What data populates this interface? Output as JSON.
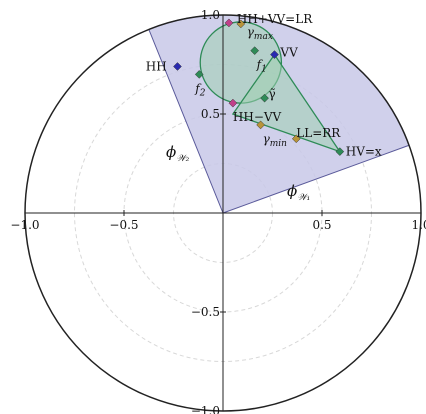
{
  "chart_data": {
    "type": "scatter",
    "title": "",
    "xlabel": "",
    "ylabel": "",
    "xlim": [
      -1,
      1
    ],
    "ylim": [
      -1,
      1
    ],
    "coordinate_system": "polar",
    "unit_circle": true,
    "dashed_radii": [
      0.25,
      0.5,
      0.75
    ],
    "x_ticks": [
      {
        "value": -1.0,
        "label": "−1.0"
      },
      {
        "value": -0.5,
        "label": "−0.5"
      },
      {
        "value": 0.5,
        "label": "0.5"
      },
      {
        "value": 1.0,
        "label": "1.0"
      }
    ],
    "y_ticks": [
      {
        "value": 1.0,
        "label": "1.0"
      },
      {
        "value": 0.5,
        "label": "0.5"
      },
      {
        "value": -0.5,
        "label": "−0.5"
      },
      {
        "value": -1.0,
        "label": "−1.0"
      }
    ],
    "sector": {
      "label": "ϕ",
      "label_subscript": "𝒲₂",
      "theta_start_deg": 20,
      "theta_end_deg": 112,
      "radius": 1,
      "fill": "#c8c8e8",
      "stroke": "#5a5a9a"
    },
    "sector_label_2": {
      "text": "ϕ",
      "subscript": "𝒲₁"
    },
    "region": {
      "fill": "#9fcfb0",
      "stroke": "#2e8b57",
      "polygon": [
        [
          0.59,
          0.31
        ],
        [
          0.26,
          0.8
        ],
        [
          0.05,
          0.5
        ]
      ],
      "circle_center": [
        0.09,
        0.76
      ],
      "circle_radius": 0.205
    },
    "points": [
      {
        "name": "HH+VV=LR",
        "x": 0.03,
        "y": 0.96,
        "color": "#c0408a",
        "label_dx": 0.04,
        "label_dy": 0.02
      },
      {
        "name": "γ",
        "name_sub": "max",
        "x": 0.09,
        "y": 0.955,
        "color": "#b8943a",
        "label_dx": 0.03,
        "label_dy": -0.04
      },
      {
        "name": "VV",
        "x": 0.26,
        "y": 0.8,
        "color": "#2a2ab0",
        "label_dx": 0.03,
        "label_dy": 0.01
      },
      {
        "name": "f",
        "name_sub": "1",
        "x": 0.16,
        "y": 0.82,
        "color": "#2e8b57",
        "label_dx": 0.01,
        "label_dy": -0.07
      },
      {
        "name": "HH",
        "x": -0.23,
        "y": 0.74,
        "color": "#2a2ab0",
        "label_dx": -0.16,
        "label_dy": 0.0
      },
      {
        "name": "f",
        "name_sub": "2",
        "x": -0.12,
        "y": 0.7,
        "color": "#2e8b57",
        "label_dx": -0.02,
        "label_dy": -0.07
      },
      {
        "name": "γ̃",
        "x": 0.21,
        "y": 0.58,
        "color": "#2e8b57",
        "label_dx": 0.02,
        "label_dy": 0.02
      },
      {
        "name": "HH−VV",
        "x": 0.05,
        "y": 0.555,
        "color": "#c0408a",
        "label_dx": 0.0,
        "label_dy": -0.07
      },
      {
        "name": "γ",
        "name_sub": "min",
        "x": 0.19,
        "y": 0.445,
        "color": "#b8943a",
        "label_dx": 0.01,
        "label_dy": -0.07
      },
      {
        "name": "LL=RR",
        "x": 0.37,
        "y": 0.375,
        "color": "#b8943a",
        "label_dx": 0.0,
        "label_dy": 0.03
      },
      {
        "name": "HV=x",
        "x": 0.59,
        "y": 0.31,
        "color": "#2e8b57",
        "label_dx": 0.03,
        "label_dy": 0.0
      }
    ]
  }
}
